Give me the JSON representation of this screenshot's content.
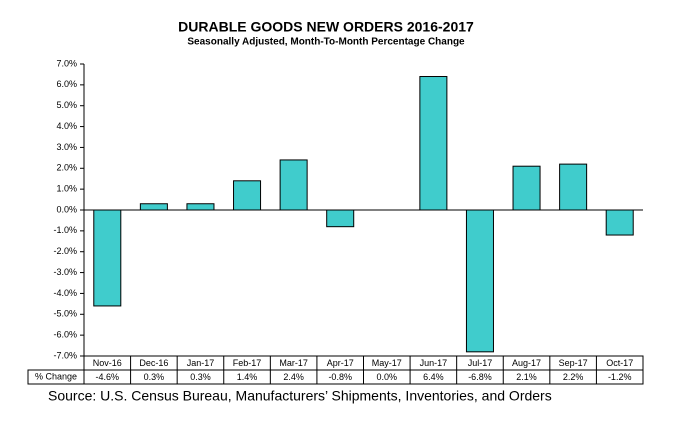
{
  "chart_data": {
    "type": "bar",
    "title": "DURABLE GOODS NEW ORDERS 2016-2017",
    "subtitle": "Seasonally Adjusted,  Month-To-Month  Percentage  Change",
    "categories": [
      "Nov-16",
      "Dec-16",
      "Jan-17",
      "Feb-17",
      "Mar-17",
      "Apr-17",
      "May-17",
      "Jun-17",
      "Jul-17",
      "Aug-17",
      "Sep-17",
      "Oct-17"
    ],
    "values": [
      -4.6,
      0.3,
      0.3,
      1.4,
      2.4,
      -0.8,
      0.0,
      6.4,
      -6.8,
      2.1,
      2.2,
      -1.2
    ],
    "value_labels": [
      "-4.6%",
      "0.3%",
      "0.3%",
      "1.4%",
      "2.4%",
      "-0.8%",
      "0.0%",
      "6.4%",
      "-6.8%",
      "2.1%",
      "2.2%",
      "-1.2%"
    ],
    "table_row_label": "% Change",
    "color": "#40cccc",
    "ylim": [
      -7,
      7
    ],
    "yticks": [
      {
        "value": 7,
        "label": "7.0%"
      },
      {
        "value": 6,
        "label": "6.0%"
      },
      {
        "value": 5,
        "label": "5.0%"
      },
      {
        "value": 4,
        "label": "4.0%"
      },
      {
        "value": 3,
        "label": "3.0%"
      },
      {
        "value": 2,
        "label": "2.0%"
      },
      {
        "value": 1,
        "label": "1.0%"
      },
      {
        "value": 0,
        "label": "0.0%"
      },
      {
        "value": -1,
        "label": "-1.0%"
      },
      {
        "value": -2,
        "label": "-2.0%"
      },
      {
        "value": -3,
        "label": "-3.0%"
      },
      {
        "value": -4,
        "label": "-4.0%"
      },
      {
        "value": -5,
        "label": "-5.0%"
      },
      {
        "value": -6,
        "label": "-6.0%"
      },
      {
        "value": -7,
        "label": "-7.0%"
      }
    ],
    "grid": false,
    "source": "Source: U.S. Census Bureau, Manufacturers’ Shipments, Inventories, and Orders"
  }
}
